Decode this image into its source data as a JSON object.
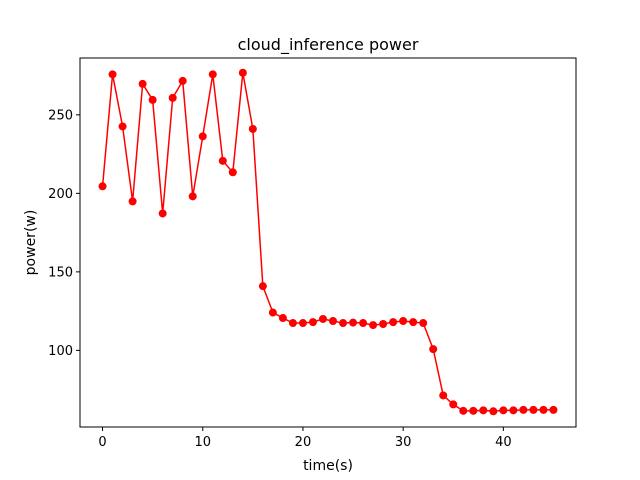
{
  "chart_data": {
    "type": "line",
    "title": "cloud_inference power",
    "xlabel": "time(s)",
    "ylabel": "power(w)",
    "xlim": [
      -2.25,
      47.25
    ],
    "ylim": [
      51.2,
      286.2
    ],
    "xticks": [
      0,
      10,
      20,
      30,
      40
    ],
    "yticks": [
      100,
      150,
      200,
      250
    ],
    "grid": false,
    "colors": {
      "line": "#ff0000",
      "marker": "#ff0000"
    },
    "series": [
      {
        "x": [
          0,
          1,
          2,
          3,
          4,
          5,
          6,
          7,
          8,
          9,
          10,
          11,
          12,
          13,
          14,
          15,
          16,
          17,
          18,
          19,
          20,
          21,
          22,
          23,
          24,
          25,
          26,
          27,
          28,
          29,
          30,
          31,
          32,
          33,
          34,
          35,
          36,
          37,
          38,
          39,
          40,
          41,
          42,
          43,
          44,
          45
        ],
        "values": [
          204.5,
          275.8,
          242.6,
          194.9,
          269.7,
          259.5,
          187.2,
          260.8,
          271.6,
          198.1,
          236.3,
          275.8,
          220.7,
          213.4,
          276.8,
          241.0,
          140.9,
          124.1,
          120.6,
          117.4,
          117.4,
          118.0,
          120.0,
          118.7,
          117.4,
          117.7,
          117.4,
          116.1,
          116.8,
          118.0,
          118.7,
          118.0,
          117.4,
          100.8,
          71.3,
          65.6,
          61.5,
          61.5,
          61.8,
          61.2,
          61.8,
          61.8,
          62.1,
          62.1,
          62.1,
          62.1
        ]
      }
    ]
  }
}
